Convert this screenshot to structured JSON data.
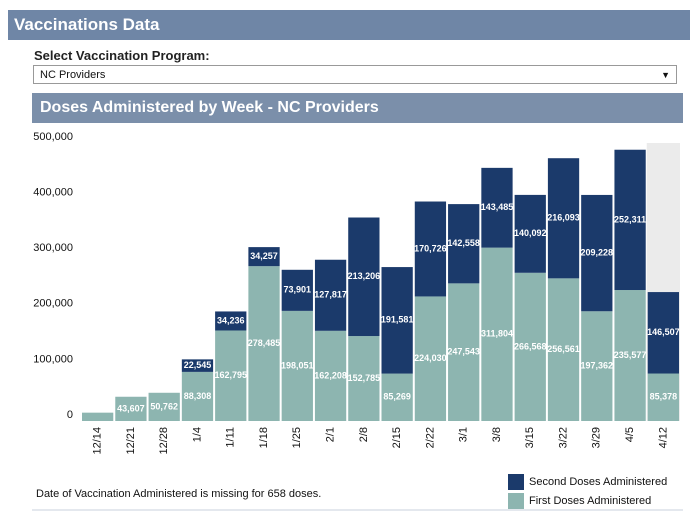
{
  "header": {
    "title": "Vaccinations Data"
  },
  "filter": {
    "label": "Select Vaccination Program:",
    "selected": "NC Providers"
  },
  "note": "Date of Vaccination Administered is missing for 658 doses.",
  "chart_data": {
    "type": "stacked-bar",
    "title": "Doses Administered by Week - NC Providers",
    "categories": [
      "12/14",
      "12/21",
      "12/28",
      "1/4",
      "1/11",
      "1/18",
      "1/25",
      "2/1",
      "2/8",
      "2/15",
      "2/22",
      "3/1",
      "3/8",
      "3/15",
      "3/22",
      "3/29",
      "4/5",
      "4/12"
    ],
    "series": [
      {
        "name": "First Doses Administered",
        "color": "#8db5b0",
        "values": [
          15000,
          43607,
          50762,
          88308,
          162795,
          278485,
          198051,
          162208,
          152785,
          85269,
          224030,
          247543,
          311804,
          266568,
          256561,
          197362,
          235577,
          85378
        ],
        "value_labels": [
          null,
          "43,607",
          "50,762",
          "88,308",
          "162,795",
          "278,485",
          "198,051",
          "162,208",
          "152,785",
          "85,269",
          "224,030",
          "247,543",
          "311,804",
          "266,568",
          "256,561",
          "197,362",
          "235,577",
          "85,378"
        ]
      },
      {
        "name": "Second Doses Administered",
        "color": "#1b3a6b",
        "values": [
          0,
          0,
          0,
          22545,
          34236,
          34257,
          73901,
          127817,
          213206,
          191581,
          170726,
          142558,
          143485,
          140092,
          216093,
          209228,
          252311,
          146507
        ],
        "value_labels": [
          null,
          null,
          null,
          "22,545",
          "34,236",
          "34,257",
          "73,901",
          "127,817",
          "213,206",
          "191,581",
          "170,726",
          "142,558",
          "143,485",
          "140,092",
          "216,093",
          "209,228",
          "252,311",
          "146,507"
        ]
      }
    ],
    "ylim": [
      0,
      500000
    ],
    "yticks": [
      0,
      {
        "value": 100000,
        "label": "100,000"
      },
      {
        "value": 200000,
        "label": "200,000"
      },
      {
        "value": 300000,
        "label": "300,000"
      },
      {
        "value": 400000,
        "label": "400,000"
      },
      {
        "value": 500000,
        "label": "500,000"
      }
    ],
    "legend": "bottom-right"
  }
}
